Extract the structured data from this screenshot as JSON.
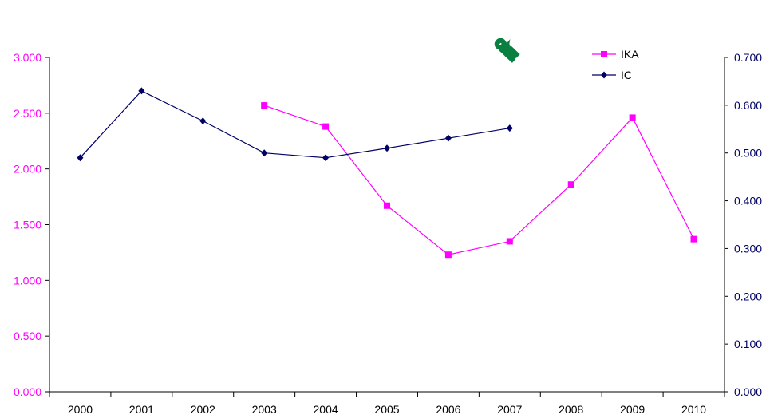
{
  "chart_data": {
    "type": "line",
    "categories": [
      "2000",
      "2001",
      "2002",
      "2003",
      "2004",
      "2005",
      "2006",
      "2007",
      "2008",
      "2009",
      "2010"
    ],
    "y_left": {
      "ylim": [
        0,
        3.0
      ],
      "ticks": [
        "0.000",
        "0.500",
        "1.000",
        "1.500",
        "2.000",
        "2.500",
        "3.000"
      ],
      "tick_values": [
        0,
        0.5,
        1.0,
        1.5,
        2.0,
        2.5,
        3.0
      ]
    },
    "y_right": {
      "ylim": [
        0,
        0.7
      ],
      "ticks": [
        "0.000",
        "0.100",
        "0.200",
        "0.300",
        "0.400",
        "0.500",
        "0.600",
        "0.700"
      ],
      "tick_values": [
        0,
        0.1,
        0.2,
        0.3,
        0.4,
        0.5,
        0.6,
        0.7
      ]
    },
    "series": [
      {
        "name": "IKA",
        "axis": "left",
        "color": "#ff00ff",
        "marker": "square",
        "values": [
          null,
          null,
          null,
          2.57,
          2.38,
          1.67,
          1.23,
          1.35,
          1.86,
          2.46,
          1.37
        ]
      },
      {
        "name": "IC",
        "axis": "right",
        "color": "#000066",
        "marker": "diamond",
        "values": [
          0.49,
          0.63,
          0.567,
          0.5,
          0.49,
          0.51,
          0.531,
          0.552,
          null,
          null,
          null
        ]
      }
    ],
    "legend_position": "top-right",
    "grid": false
  },
  "watermark": {
    "text": "ONE",
    "color": "#0a8040"
  }
}
